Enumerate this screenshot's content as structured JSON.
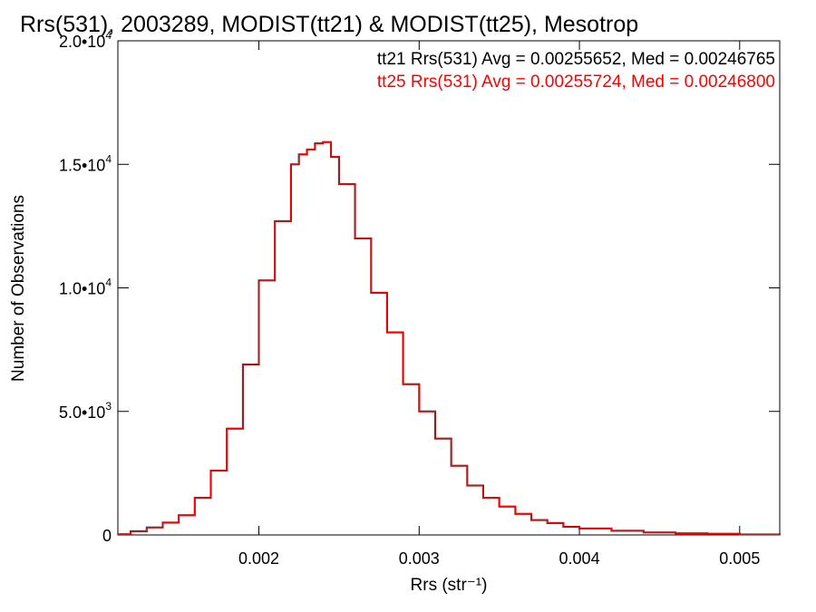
{
  "chart_data": {
    "type": "line",
    "title": "Rrs(531), 2003289, MODIST(tt21) & MODIST(tt25), Mesotrop",
    "xlabel": "Rrs (str⁻¹)",
    "ylabel": "Number of Observations",
    "xlim": [
      0.00112,
      0.00525
    ],
    "ylim": [
      0,
      20000
    ],
    "x_ticks": [
      0.002,
      0.003,
      0.004,
      0.005
    ],
    "x_tick_labels": [
      "0.002",
      "0.003",
      "0.004",
      "0.005"
    ],
    "y_ticks": [
      0,
      5000,
      10000,
      15000,
      20000
    ],
    "y_tick_labels": [
      {
        "mant": "0",
        "exp": ""
      },
      {
        "mant": "5.0•10",
        "exp": "3"
      },
      {
        "mant": "1.0•10",
        "exp": "4"
      },
      {
        "mant": "1.5•10",
        "exp": "4"
      },
      {
        "mant": "2.0•10",
        "exp": "4"
      }
    ],
    "grid": false,
    "plot_style": "histogram-step",
    "legend": {
      "placement": "top-right",
      "entries": [
        {
          "text": "tt21 Rrs(531) Avg = 0.00255652, Med = 0.00246765",
          "color": "#000000"
        },
        {
          "text": "tt25 Rrs(531) Avg = 0.00255724, Med = 0.00246800",
          "color": "#ff0000"
        }
      ]
    },
    "series": [
      {
        "name": "tt21",
        "color": "#000000",
        "x": [
          0.00112,
          0.0012,
          0.0013,
          0.0014,
          0.0015,
          0.0016,
          0.0017,
          0.0018,
          0.0019,
          0.002,
          0.0021,
          0.0022,
          0.00225,
          0.0023,
          0.00235,
          0.0024,
          0.00245,
          0.0025,
          0.0026,
          0.0027,
          0.0028,
          0.0029,
          0.003,
          0.0031,
          0.0032,
          0.0033,
          0.0034,
          0.0035,
          0.0036,
          0.0037,
          0.0038,
          0.0039,
          0.004,
          0.0042,
          0.0044,
          0.0046,
          0.0048,
          0.005,
          0.00525
        ],
        "y": [
          30,
          150,
          300,
          500,
          800,
          1500,
          2600,
          4300,
          6900,
          10300,
          12700,
          15000,
          15400,
          15600,
          15850,
          15900,
          15300,
          14200,
          12000,
          9800,
          8200,
          6100,
          5000,
          3900,
          2800,
          2000,
          1500,
          1150,
          850,
          600,
          480,
          330,
          260,
          170,
          100,
          65,
          45,
          20,
          10
        ]
      },
      {
        "name": "tt25",
        "color": "#ff0000",
        "x": [
          0.00112,
          0.0012,
          0.0013,
          0.0014,
          0.0015,
          0.0016,
          0.0017,
          0.0018,
          0.0019,
          0.002,
          0.0021,
          0.0022,
          0.00225,
          0.0023,
          0.00235,
          0.0024,
          0.00245,
          0.0025,
          0.0026,
          0.0027,
          0.0028,
          0.0029,
          0.003,
          0.0031,
          0.0032,
          0.0033,
          0.0034,
          0.0035,
          0.0036,
          0.0037,
          0.0038,
          0.0039,
          0.004,
          0.0042,
          0.0044,
          0.0046,
          0.0048,
          0.005,
          0.00525
        ],
        "y": [
          30,
          150,
          300,
          500,
          800,
          1500,
          2600,
          4300,
          6900,
          10300,
          12700,
          15000,
          15400,
          15600,
          15850,
          15900,
          15300,
          14200,
          12000,
          9800,
          8200,
          6100,
          5000,
          3900,
          2800,
          2000,
          1500,
          1150,
          850,
          600,
          480,
          330,
          260,
          170,
          100,
          65,
          45,
          20,
          10
        ]
      }
    ]
  }
}
